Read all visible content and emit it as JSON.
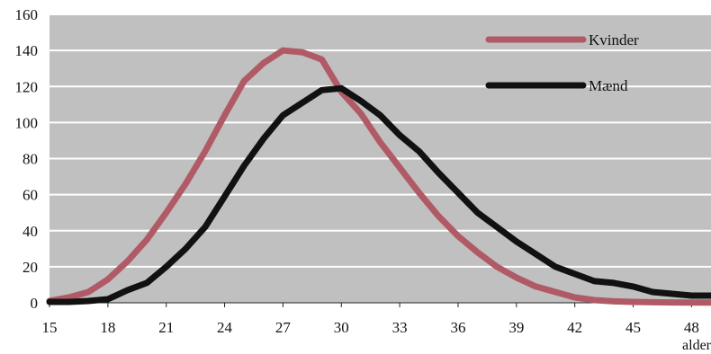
{
  "chart_data": {
    "type": "line",
    "title": "",
    "xlabel": "alder",
    "ylabel": "",
    "xlim": [
      15,
      49
    ],
    "ylim": [
      0,
      160
    ],
    "x_ticks": [
      15,
      18,
      21,
      24,
      27,
      30,
      33,
      36,
      39,
      42,
      45,
      48
    ],
    "y_ticks": [
      0,
      20,
      40,
      60,
      80,
      100,
      120,
      140,
      160
    ],
    "grid": true,
    "background": "#c0c0c0",
    "legend": "top-right",
    "x": [
      15,
      16,
      17,
      18,
      19,
      20,
      21,
      22,
      23,
      24,
      25,
      26,
      27,
      28,
      29,
      30,
      31,
      32,
      33,
      34,
      35,
      36,
      37,
      38,
      39,
      40,
      41,
      42,
      43,
      44,
      45,
      46,
      47,
      48,
      49
    ],
    "series": [
      {
        "name": "Kvinder",
        "color": "#b05a66",
        "values": [
          1,
          3,
          6,
          13,
          23,
          35,
          50,
          66,
          84,
          104,
          123,
          133,
          140,
          139,
          135,
          117,
          105,
          89,
          75,
          61,
          48,
          37,
          28,
          20,
          14,
          9,
          6,
          3,
          1.5,
          0.8,
          0.5,
          0.3,
          0.2,
          0.1,
          0.1
        ]
      },
      {
        "name": "Mænd",
        "color": "#111111",
        "values": [
          0.5,
          0.5,
          1,
          2,
          7,
          11,
          20,
          30,
          42,
          59,
          76,
          91,
          104,
          111,
          118,
          119,
          112,
          104,
          93,
          84,
          72,
          61,
          50,
          42,
          34,
          27,
          20,
          16,
          12,
          11,
          9,
          6,
          5,
          4,
          4
        ]
      }
    ]
  }
}
